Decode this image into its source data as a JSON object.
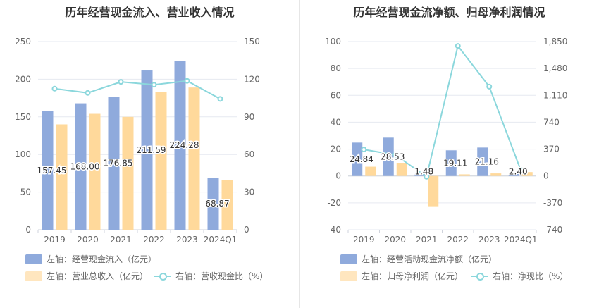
{
  "chart_data": [
    {
      "type": "bar",
      "title": "历年经营现金流入、营业收入情况",
      "categories": [
        "2019",
        "2020",
        "2021",
        "2022",
        "2023",
        "2024Q1"
      ],
      "left_axis": {
        "min": 0,
        "max": 250,
        "ticks": [
          "0",
          "50",
          "100",
          "150",
          "200",
          "250"
        ]
      },
      "right_axis": {
        "min": 0,
        "max": 150,
        "ticks": [
          "0",
          "30",
          "60",
          "90",
          "120",
          "150"
        ]
      },
      "series": [
        {
          "name": "左轴：经营现金流入（亿元）",
          "axis": "left",
          "kind": "bar",
          "color": "#8faadc",
          "values": [
            157.45,
            168.0,
            176.85,
            211.59,
            224.28,
            68.87
          ],
          "labels": [
            "157.45",
            "168.00",
            "176.85",
            "211.59",
            "224.28",
            "68.87"
          ]
        },
        {
          "name": "左轴：营业总收入（亿元）",
          "axis": "left",
          "kind": "bar",
          "color": "#ffd99b",
          "values": [
            140,
            154,
            150,
            183,
            189,
            66
          ]
        },
        {
          "name": "右轴：营收现金比（%）",
          "axis": "right",
          "kind": "line",
          "color": "#8bd7dc",
          "values": [
            112.5,
            109.1,
            117.9,
            115.6,
            118.7,
            104.3
          ]
        }
      ],
      "grid": true,
      "legend_position": "bottom"
    },
    {
      "type": "bar",
      "title": "历年经营现金流净额、归母净利润情况",
      "categories": [
        "2019",
        "2020",
        "2021",
        "2022",
        "2023",
        "2024Q1"
      ],
      "left_axis": {
        "min": -40,
        "max": 100,
        "ticks": [
          "-40",
          "-20",
          "0",
          "20",
          "40",
          "60",
          "80",
          "100"
        ]
      },
      "right_axis": {
        "min": -740,
        "max": 1850,
        "ticks": [
          "-740",
          "-370",
          "0",
          "370",
          "740",
          "1,110",
          "1,480",
          "1,850"
        ]
      },
      "series": [
        {
          "name": "左轴：经营活动现金流净额（亿元）",
          "axis": "left",
          "kind": "bar",
          "color": "#8faadc",
          "values": [
            24.84,
            28.53,
            1.48,
            19.11,
            21.16,
            2.4
          ],
          "labels": [
            "24.84",
            "28.53",
            "1.48",
            "19.11",
            "21.16",
            "2.40"
          ]
        },
        {
          "name": "左轴：归母净利润（亿元）",
          "axis": "left",
          "kind": "bar",
          "color": "#ffd99b",
          "values": [
            6.9,
            9.8,
            -22.5,
            1.2,
            1.9,
            2.9
          ]
        },
        {
          "name": "右轴：净现比（%）",
          "axis": "right",
          "kind": "line",
          "color": "#8bd7dc",
          "values": [
            365,
            291,
            -10,
            1790,
            1230,
            85
          ]
        }
      ],
      "grid": true,
      "legend_position": "bottom"
    }
  ]
}
